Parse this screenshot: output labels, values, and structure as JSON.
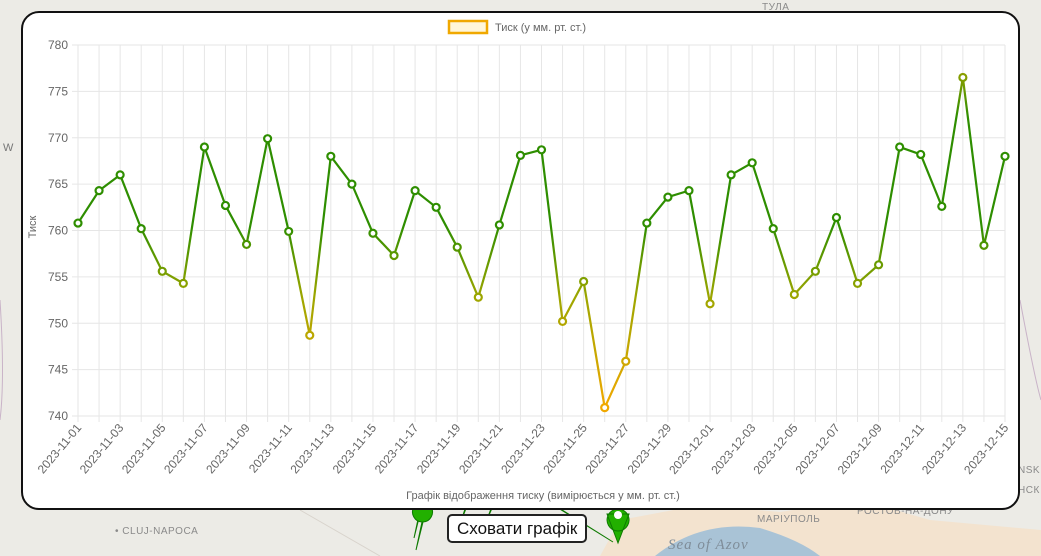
{
  "map": {
    "labels": {
      "tula": "ТУЛА",
      "cluj": "CLUJ-NAPOCA",
      "mariupol": "МАРІУПОЛЬ",
      "rostov": "РОСТОВ-НА-ДОНУ",
      "sea": "Sea of Azov",
      "left_w": "W",
      "right_nsk1": "NSK",
      "right_nsk2": "НСК"
    }
  },
  "hide_button": {
    "label": "Сховати графік"
  },
  "colors": {
    "low": "#f0a800",
    "high": "#0e8a00"
  },
  "chart_data": {
    "type": "line",
    "legend": {
      "label": "Тиск (у мм. рт. ст.)",
      "position": "top-center"
    },
    "xlabel": "Графік відображення тиску (вимірюється у мм. рт. ст.)",
    "ylabel": "Тиск",
    "ylim": [
      740,
      780
    ],
    "yticks": [
      740,
      745,
      750,
      755,
      760,
      765,
      770,
      775,
      780
    ],
    "grid": true,
    "x": [
      "2023-11-01",
      "2023-11-02",
      "2023-11-03",
      "2023-11-04",
      "2023-11-05",
      "2023-11-06",
      "2023-11-07",
      "2023-11-08",
      "2023-11-09",
      "2023-11-10",
      "2023-11-11",
      "2023-11-12",
      "2023-11-13",
      "2023-11-14",
      "2023-11-15",
      "2023-11-16",
      "2023-11-17",
      "2023-11-18",
      "2023-11-19",
      "2023-11-20",
      "2023-11-21",
      "2023-11-22",
      "2023-11-23",
      "2023-11-24",
      "2023-11-25",
      "2023-11-26",
      "2023-11-27",
      "2023-11-28",
      "2023-11-29",
      "2023-11-30",
      "2023-12-01",
      "2023-12-02",
      "2023-12-03",
      "2023-12-04",
      "2023-12-05",
      "2023-12-06",
      "2023-12-07",
      "2023-12-08",
      "2023-12-09",
      "2023-12-10",
      "2023-12-11",
      "2023-12-12",
      "2023-12-13",
      "2023-12-14",
      "2023-12-15"
    ],
    "xticks": [
      "2023-11-01",
      "2023-11-03",
      "2023-11-05",
      "2023-11-07",
      "2023-11-09",
      "2023-11-11",
      "2023-11-13",
      "2023-11-15",
      "2023-11-17",
      "2023-11-19",
      "2023-11-21",
      "2023-11-23",
      "2023-11-25",
      "2023-11-27",
      "2023-11-29",
      "2023-12-01",
      "2023-12-03",
      "2023-12-05",
      "2023-12-07",
      "2023-12-09",
      "2023-12-11",
      "2023-12-13",
      "2023-12-15"
    ],
    "series": [
      {
        "name": "Тиск (у мм. рт. ст.)",
        "values": [
          760.8,
          764.3,
          766.0,
          760.2,
          755.6,
          754.3,
          769.0,
          762.7,
          758.5,
          769.9,
          759.9,
          748.7,
          768.0,
          765.0,
          759.7,
          757.3,
          764.3,
          762.5,
          758.2,
          752.8,
          760.6,
          768.1,
          768.7,
          750.2,
          754.5,
          740.9,
          745.9,
          760.8,
          763.6,
          764.3,
          752.1,
          766.0,
          767.3,
          760.2,
          753.1,
          755.6,
          761.4,
          754.3,
          756.3,
          769.0,
          768.2,
          762.6,
          776.5,
          758.4,
          768.0
        ]
      }
    ]
  }
}
